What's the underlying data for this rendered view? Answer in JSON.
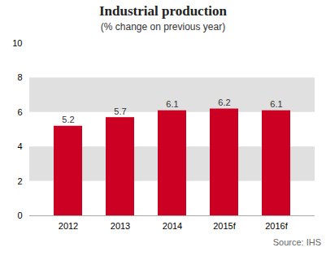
{
  "chart_data": {
    "type": "bar",
    "title": "Industrial production",
    "subtitle": "(% change on previous year)",
    "source": "Source: IHS",
    "categories": [
      "2012",
      "2013",
      "2014",
      "2015f",
      "2016f"
    ],
    "values": [
      5.2,
      5.7,
      6.1,
      6.2,
      6.1
    ],
    "color": "#cc0022",
    "ylim": [
      0,
      10
    ],
    "yticks": [
      0,
      2,
      4,
      6,
      8,
      10
    ],
    "grid": true,
    "data_labels": true
  }
}
